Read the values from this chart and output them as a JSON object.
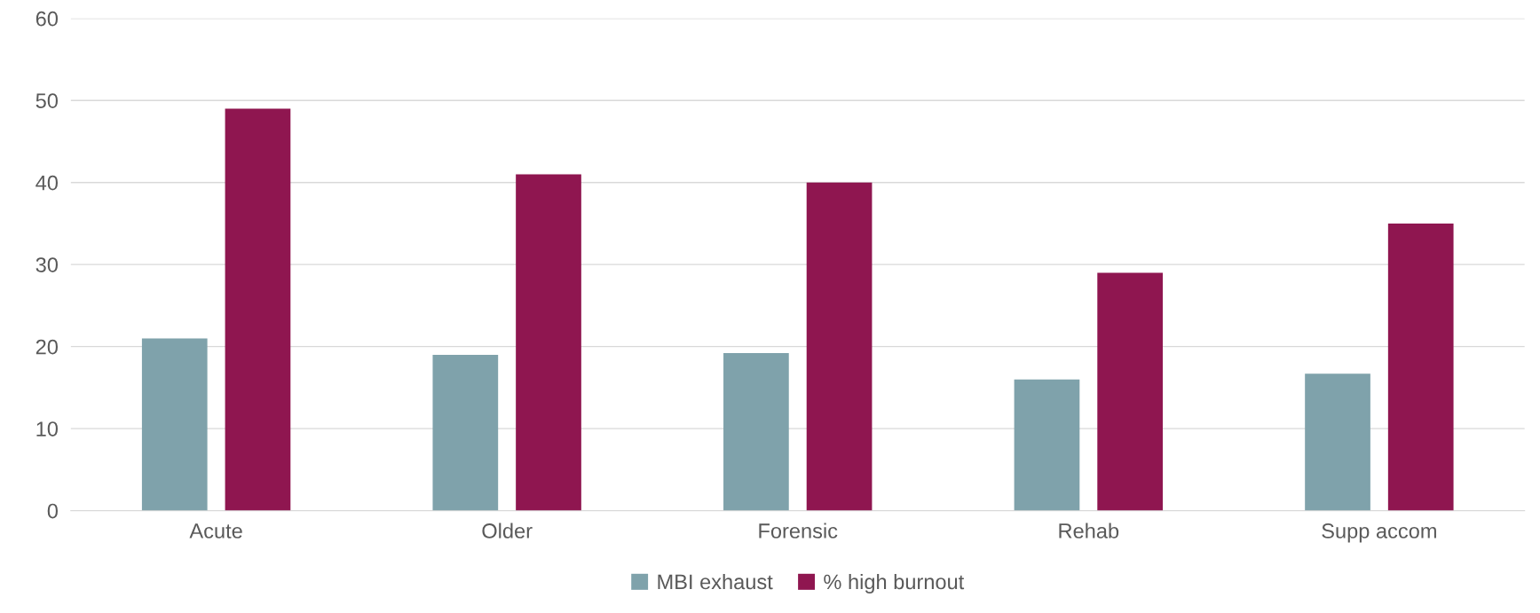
{
  "chart_data": {
    "type": "bar",
    "categories": [
      "Acute",
      "Older",
      "Forensic",
      "Rehab",
      "Supp accom"
    ],
    "series": [
      {
        "name": "MBI exhaust",
        "color": "#7fa2ab",
        "values": [
          21,
          19,
          19.2,
          16,
          16.7
        ]
      },
      {
        "name": "% high burnout",
        "color": "#8f1650",
        "values": [
          49,
          41,
          40,
          29,
          35
        ]
      }
    ],
    "ylim": [
      0,
      60
    ],
    "yticks": [
      0,
      10,
      20,
      30,
      40,
      50,
      60
    ],
    "grid": "y",
    "legend": "bottom"
  }
}
